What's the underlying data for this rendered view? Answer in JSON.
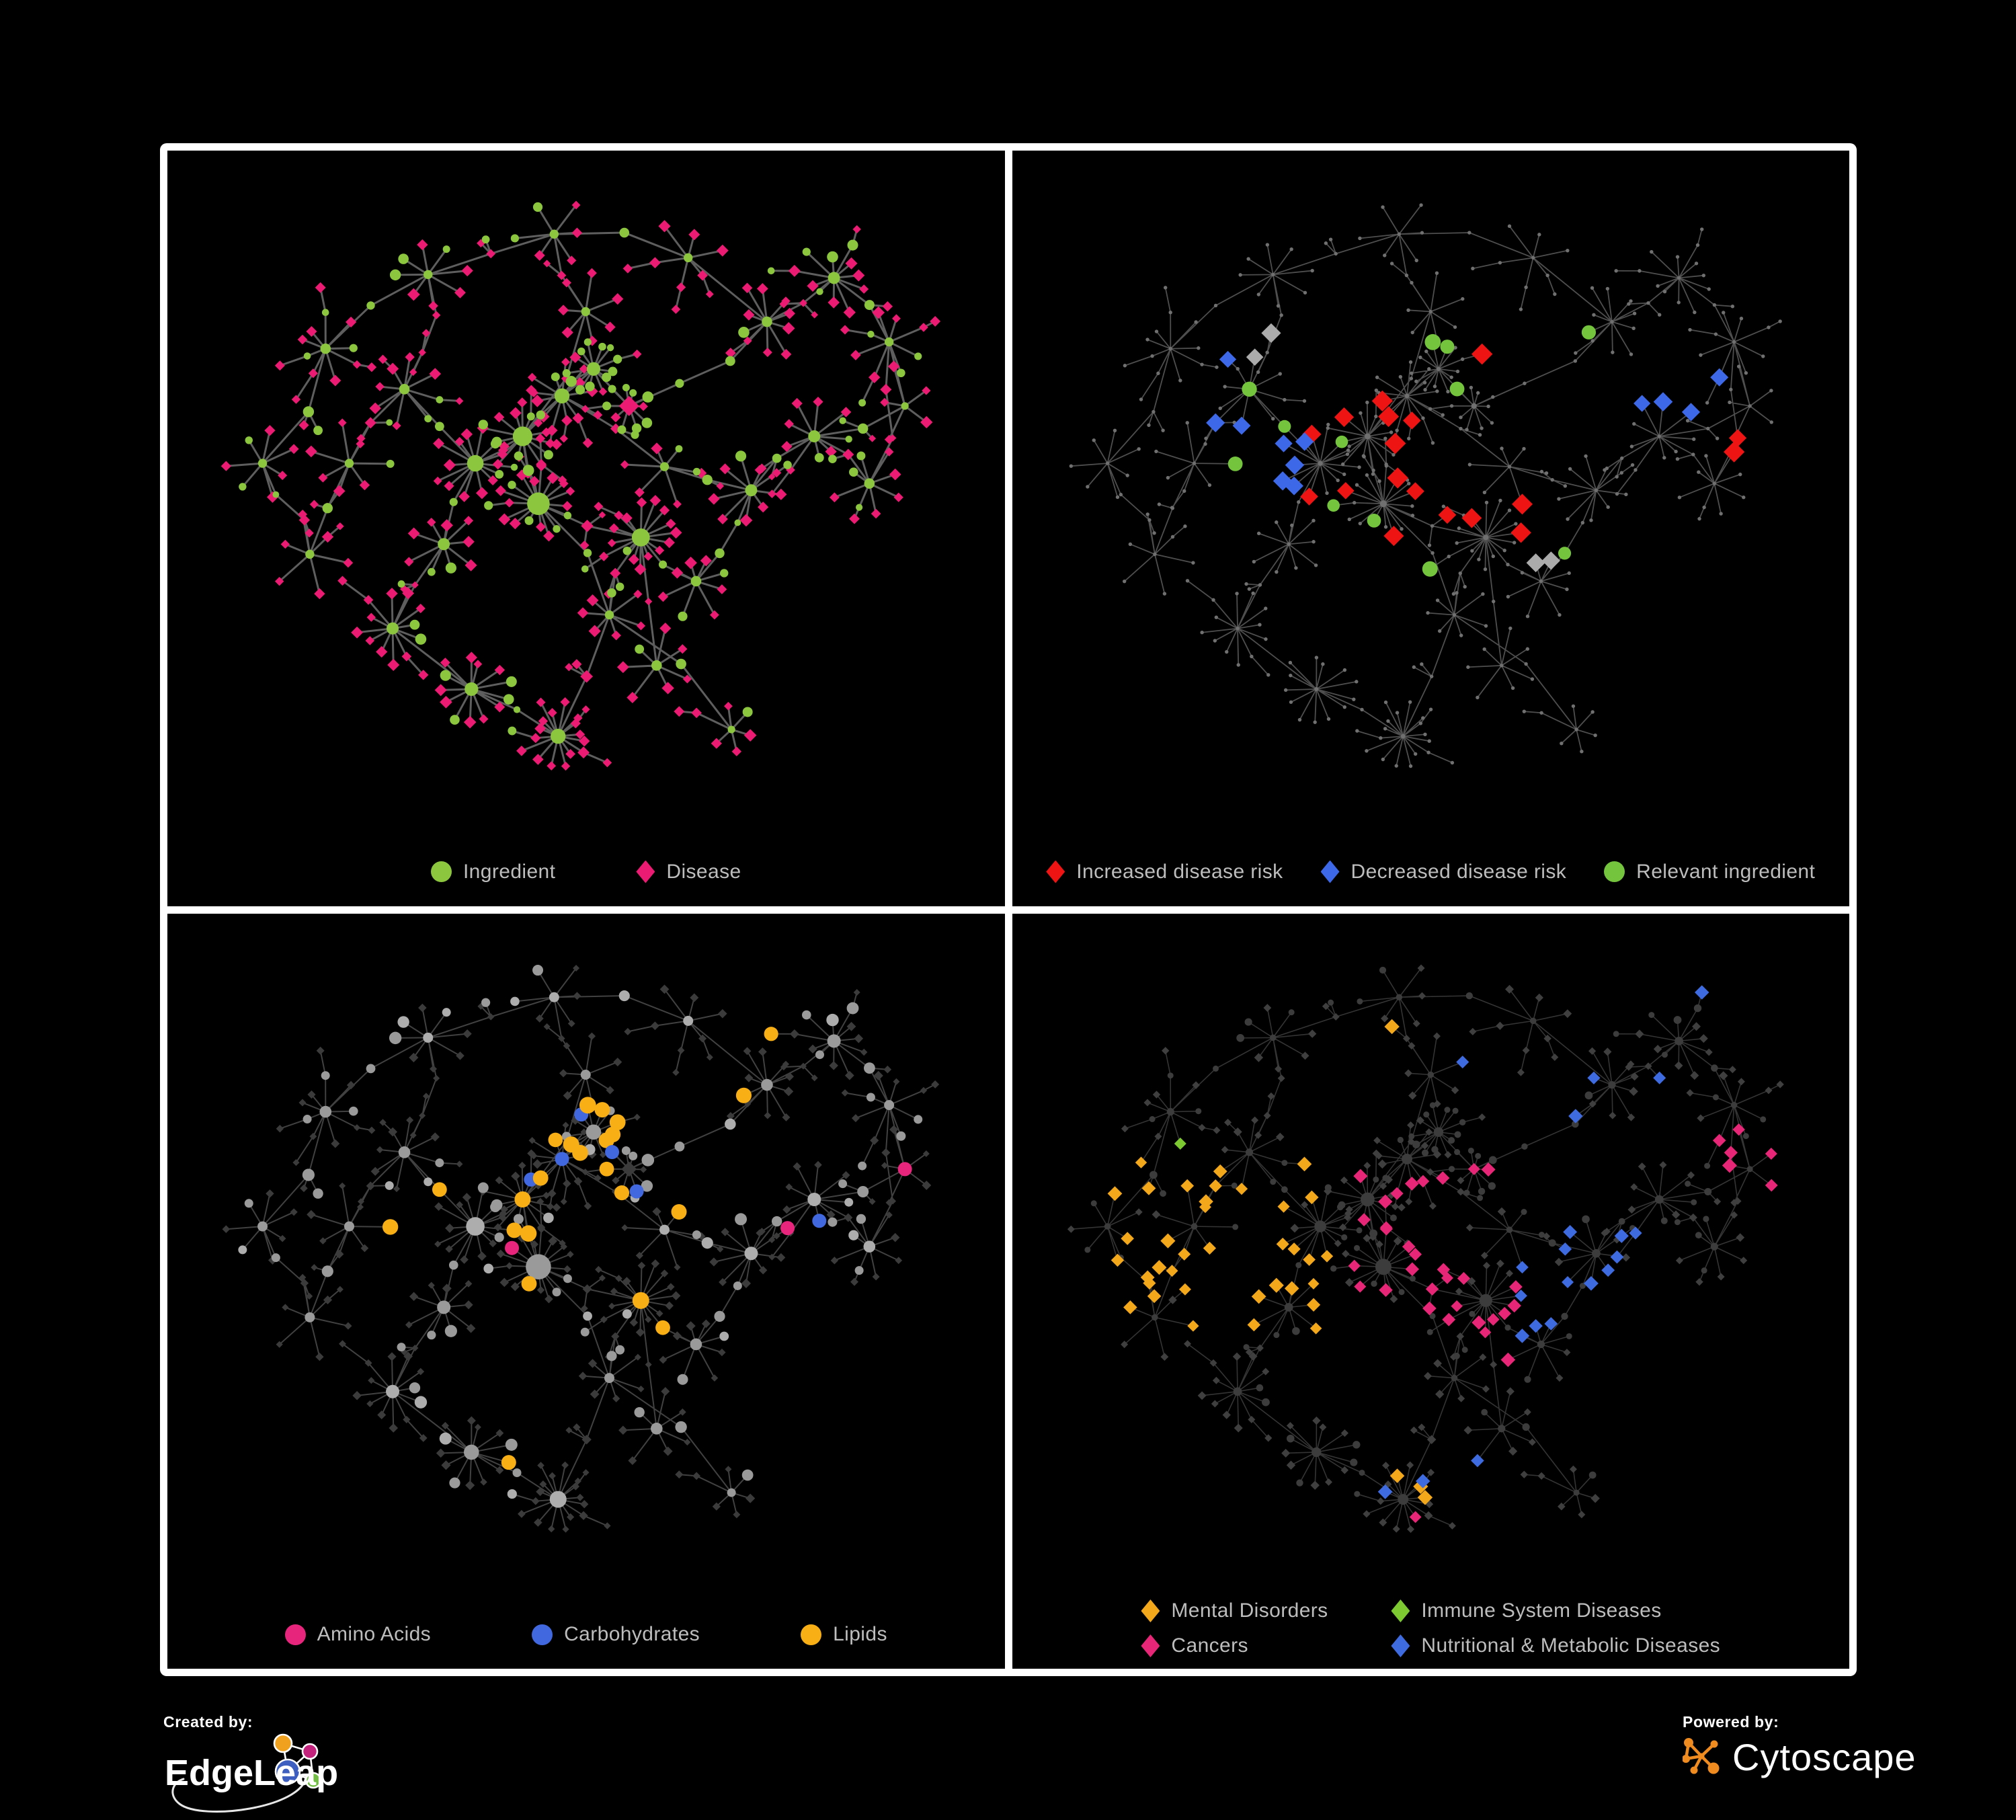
{
  "colors": {
    "background": "#000000",
    "frame_border": "#FFFFFF",
    "legend_text": "#BDBDBD",
    "ingredient_green": "#8CC63E",
    "disease_pink": "#EB1A72",
    "risk_red": "#EE1414",
    "risk_blue": "#3D68E8",
    "relevant_green": "#74C43D",
    "amino_pink": "#E8257D",
    "carb_blue": "#4168DF",
    "lipid_orange": "#F8AF15",
    "mental_orange": "#F3A81B",
    "immune_green": "#7CC932",
    "cancer_pink": "#E72677",
    "nutritional_blue": "#3F6BE0",
    "dim_gray_node": "#9C9C9C",
    "dark_gray_node": "#3C3C3C",
    "edge_gray": "#6A6A6A"
  },
  "panels": [
    {
      "name": "ingredient-disease-network",
      "legend": [
        {
          "label": "Ingredient",
          "shape": "circle",
          "color": "#8CC63E"
        },
        {
          "label": "Disease",
          "shape": "diamond",
          "color": "#EB1A72"
        }
      ]
    },
    {
      "name": "disease-risk-network",
      "legend": [
        {
          "label": "Increased disease risk",
          "shape": "diamond",
          "color": "#EE1414"
        },
        {
          "label": "Decreased disease risk",
          "shape": "diamond",
          "color": "#3D68E8"
        },
        {
          "label": "Relevant ingredient",
          "shape": "circle",
          "color": "#74C43D"
        }
      ]
    },
    {
      "name": "ingredient-class-network",
      "legend": [
        {
          "label": "Amino Acids",
          "shape": "circle",
          "color": "#E8257D"
        },
        {
          "label": "Carbohydrates",
          "shape": "circle",
          "color": "#4168DF"
        },
        {
          "label": "Lipids",
          "shape": "circle",
          "color": "#F8AF15"
        }
      ]
    },
    {
      "name": "disease-class-network",
      "legend": [
        {
          "label": "Mental Disorders",
          "shape": "diamond",
          "color": "#F3A81B"
        },
        {
          "label": "Immune System Diseases",
          "shape": "diamond",
          "color": "#7CC932"
        },
        {
          "label": "Cancers",
          "shape": "diamond",
          "color": "#E72677"
        },
        {
          "label": "Nutritional & Metabolic Diseases",
          "shape": "diamond",
          "color": "#3F6BE0"
        }
      ]
    }
  ],
  "footer": {
    "created_by_label": "Created by:",
    "left_brand": "EdgeLeap",
    "powered_by_label": "Powered by:",
    "right_brand": "Cytoscape"
  },
  "chart_data": [
    {
      "type": "network",
      "panel": "top-left",
      "title": "",
      "legend": [
        "Ingredient",
        "Disease"
      ],
      "node_types": [
        {
          "label": "Ingredient",
          "marker": "circle",
          "color": "#8CC63E",
          "approx_count": 210
        },
        {
          "label": "Disease",
          "marker": "diamond",
          "color": "#EB1A72",
          "approx_count": 270
        }
      ],
      "edge_color": "#6A6A6A",
      "background": "#000000",
      "layout": "organic force-directed; dense central core with star-shaped leaf fans and long peripheral branches",
      "approx_edge_count": 500,
      "shares_layout_with_other_panels": true
    },
    {
      "type": "network",
      "panel": "top-right",
      "title": "",
      "legend": [
        "Increased disease risk",
        "Decreased disease risk",
        "Relevant ingredient"
      ],
      "node_types": [
        {
          "label": "Increased disease risk",
          "marker": "diamond",
          "color": "#EE1414",
          "approx_count": 34
        },
        {
          "label": "Decreased disease risk",
          "marker": "diamond",
          "color": "#3D68E8",
          "approx_count": 11
        },
        {
          "label": "Unclassified highlighted disease",
          "marker": "diamond",
          "color": "#ABABAB",
          "approx_count": 9
        },
        {
          "label": "Relevant ingredient",
          "marker": "circle",
          "color": "#74C43D",
          "approx_count": 28
        },
        {
          "label": "Background node",
          "marker": "dot",
          "color": "#707070",
          "approx_count": 400
        }
      ],
      "edge_color": "#575757",
      "notes": "Same layout as top-left panel, base graph dimmed to small gray dots; red diamonds cluster in the core, blue diamonds left of core and a pair at top right, greens scattered through the core"
    },
    {
      "type": "network",
      "panel": "bottom-left",
      "title": "",
      "legend": [
        "Amino Acids",
        "Carbohydrates",
        "Lipids"
      ],
      "node_types": [
        {
          "label": "Amino Acids",
          "marker": "circle",
          "color": "#E8257D",
          "approx_count": 16
        },
        {
          "label": "Carbohydrates",
          "marker": "circle",
          "color": "#4168DF",
          "approx_count": 13
        },
        {
          "label": "Lipids",
          "marker": "circle",
          "color": "#F8AF15",
          "approx_count": 60
        },
        {
          "label": "Other ingredient",
          "marker": "circle",
          "color": "#9C9C9C",
          "approx_count": 130
        },
        {
          "label": "Disease (dimmed)",
          "marker": "diamond",
          "color": "#3B3B3B",
          "approx_count": 270
        }
      ],
      "edge_color": "#9A9A9A",
      "notes": "Same layout; lipids form a dense orange cluster top-center, amino acids scattered on periphery, few carbohydrates near the lipid cluster"
    },
    {
      "type": "network",
      "panel": "bottom-right",
      "title": "",
      "legend": [
        "Mental Disorders",
        "Immune System Diseases",
        "Cancers",
        "Nutritional & Metabolic Diseases"
      ],
      "node_types": [
        {
          "label": "Mental Disorders",
          "marker": "diamond",
          "color": "#F3A81B",
          "approx_count": 65
        },
        {
          "label": "Immune System Diseases",
          "marker": "diamond",
          "color": "#7CC932",
          "approx_count": 9
        },
        {
          "label": "Cancers",
          "marker": "diamond",
          "color": "#E72677",
          "approx_count": 55
        },
        {
          "label": "Nutritional & Metabolic Diseases",
          "marker": "diamond",
          "color": "#3F6BE0",
          "approx_count": 60
        },
        {
          "label": "Other node (dimmed)",
          "marker": "mixed",
          "color": "#3C3C3C",
          "approx_count": 290
        }
      ],
      "edge_color": "#8A8A8A",
      "notes": "Same layout; orange mental-disorder cluster left of center, pink cancer cluster in core, blue nutritional/metabolic cluster right of core plus scatter across top right, sparse greens"
    }
  ]
}
